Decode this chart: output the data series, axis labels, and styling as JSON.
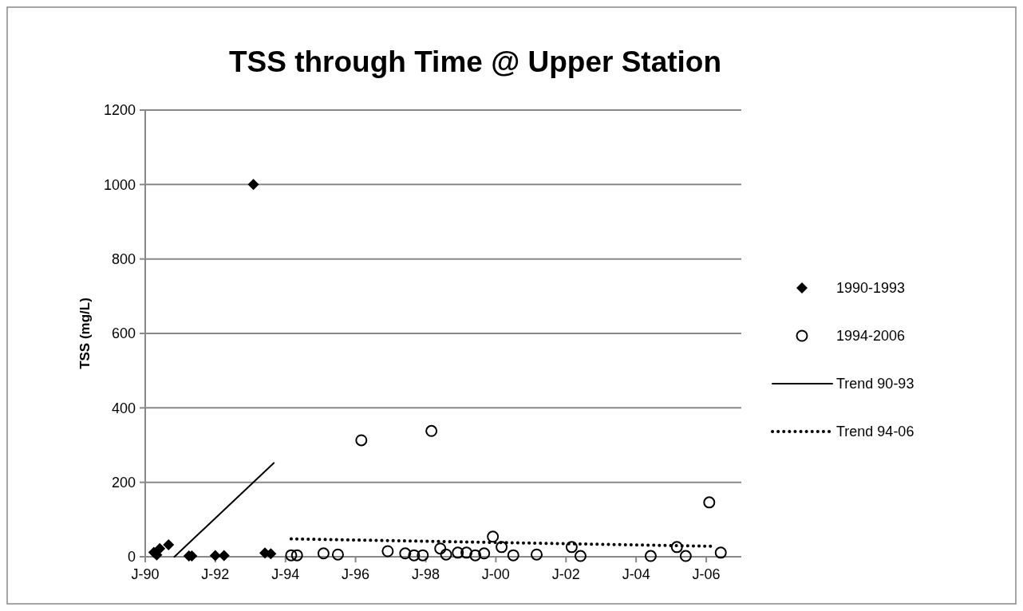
{
  "chart_data": {
    "type": "scatter",
    "title": "TSS through Time @ Upper Station",
    "ylabel": "TSS (mg/L)",
    "xlim": [
      "1990-01",
      "2007-01"
    ],
    "xticks": [
      {
        "value": "1990-01",
        "label": "J-90"
      },
      {
        "value": "1992-01",
        "label": "J-92"
      },
      {
        "value": "1994-01",
        "label": "J-94"
      },
      {
        "value": "1996-01",
        "label": "J-96"
      },
      {
        "value": "1998-01",
        "label": "J-98"
      },
      {
        "value": "2000-01",
        "label": "J-00"
      },
      {
        "value": "2002-01",
        "label": "J-02"
      },
      {
        "value": "2004-01",
        "label": "J-04"
      },
      {
        "value": "2006-01",
        "label": "J-06"
      }
    ],
    "ylim": [
      0,
      1200
    ],
    "yticks": [
      0,
      200,
      400,
      600,
      800,
      1000,
      1200
    ],
    "grid": "y",
    "legend": "right",
    "series": [
      {
        "name": "1990-1993",
        "marker": "diamond",
        "color": "#000000",
        "x": [
          "1990-04",
          "1990-05",
          "1990-06",
          "1990-09",
          "1991-04",
          "1991-05",
          "1992-01",
          "1992-04",
          "1993-02",
          "1993-06",
          "1993-08"
        ],
        "values": [
          12,
          5,
          22,
          32,
          2,
          2,
          3,
          3,
          1000,
          10,
          8
        ]
      },
      {
        "name": "1994-2006",
        "marker": "circle",
        "color": "#000000",
        "x": [
          "1994-03",
          "1994-05",
          "1995-02",
          "1995-07",
          "1996-03",
          "1996-12",
          "1997-06",
          "1997-09",
          "1997-12",
          "1998-03",
          "1998-06",
          "1998-08",
          "1998-12",
          "1999-03",
          "1999-06",
          "1999-09",
          "1999-12",
          "2000-03",
          "2000-07",
          "2001-03",
          "2002-03",
          "2002-06",
          "2004-06",
          "2005-03",
          "2005-06",
          "2006-02",
          "2006-06"
        ],
        "values": [
          4,
          4,
          9,
          6,
          313,
          15,
          9,
          4,
          4,
          338,
          22,
          6,
          11,
          11,
          4,
          9,
          54,
          26,
          4,
          6,
          26,
          2,
          2,
          26,
          2,
          146,
          11
        ]
      },
      {
        "name": "Trend 90-93",
        "type": "line",
        "line_style": "solid",
        "color": "#000000",
        "x": [
          "1990-11",
          "1993-09"
        ],
        "values": [
          0,
          252
        ]
      },
      {
        "name": "Trend 94-06",
        "type": "line",
        "line_style": "dotted",
        "color": "#000000",
        "x": [
          "1994-03",
          "2006-04"
        ],
        "values": [
          48,
          28
        ]
      }
    ]
  }
}
